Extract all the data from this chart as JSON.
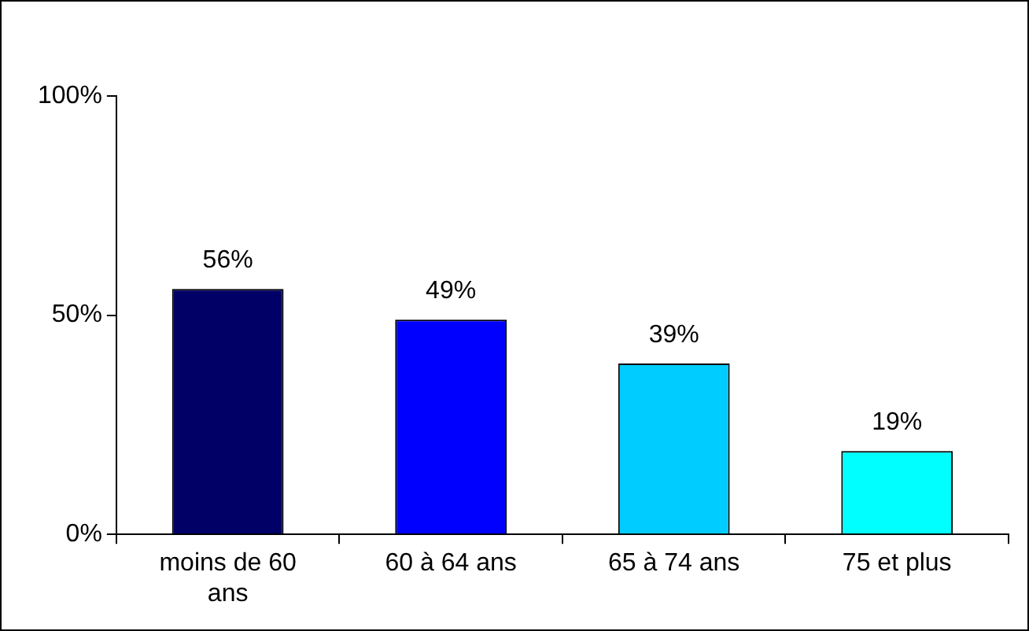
{
  "chart_data": {
    "type": "bar",
    "categories": [
      "moins de 60 ans",
      "60 à 64 ans",
      "65 à 74 ans",
      "75 et plus"
    ],
    "values": [
      56,
      49,
      39,
      19
    ],
    "colors": [
      "#000066",
      "#0000ff",
      "#00ccff",
      "#00ffff"
    ],
    "ylim": [
      0,
      100
    ],
    "yticks": [
      {
        "value": 0,
        "label": "0%"
      },
      {
        "value": 50,
        "label": "50%"
      },
      {
        "value": 100,
        "label": "100%"
      }
    ],
    "value_labels": [
      "56%",
      "49%",
      "39%",
      "19%"
    ],
    "grid": false,
    "legend": false
  }
}
